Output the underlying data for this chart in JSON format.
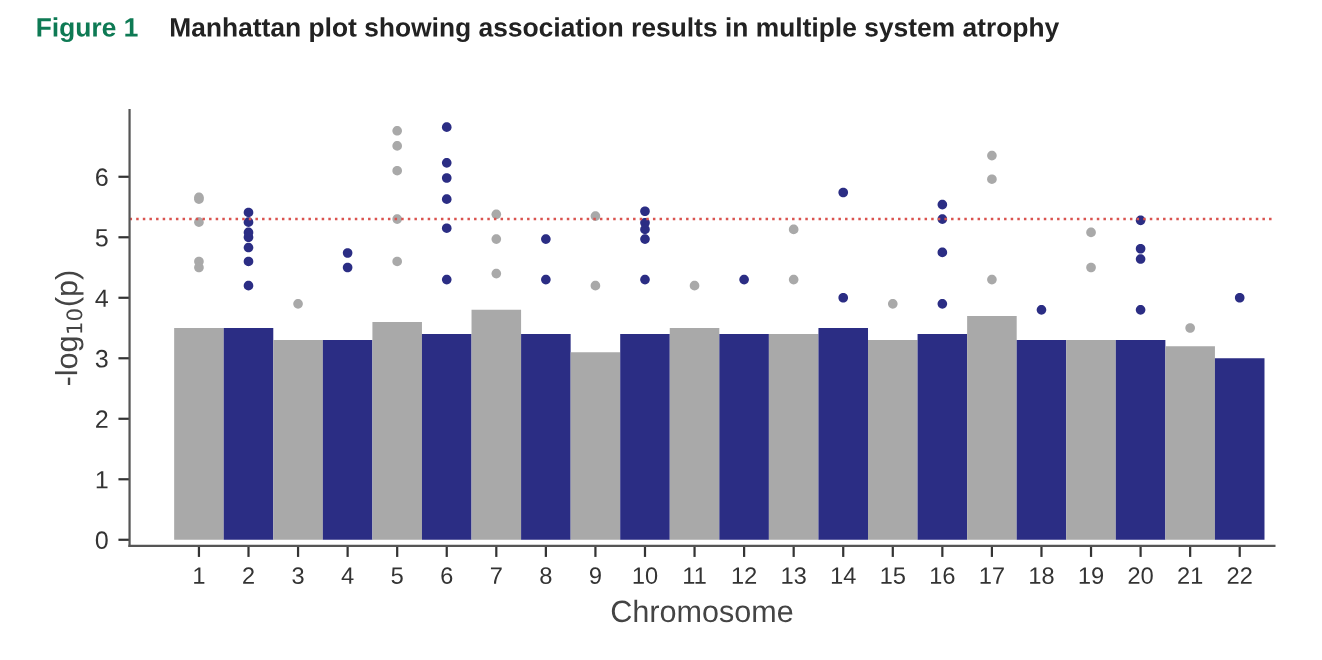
{
  "chart_data": {
    "type": "bar",
    "title": "Manhattan plot showing association results in multiple system atrophy",
    "annotations": [
      "Figure 1"
    ],
    "xlabel": "Chromosome",
    "ylabel": "-log$_{10}$(p)",
    "categories": [
      "1",
      "2",
      "3",
      "4",
      "5",
      "6",
      "7",
      "8",
      "9",
      "10",
      "11",
      "12",
      "13",
      "14",
      "15",
      "16",
      "17",
      "18",
      "19",
      "20",
      "21",
      "22"
    ],
    "ylim": [
      -0.1,
      7.1
    ],
    "yticks": [
      0,
      1,
      2,
      3,
      4,
      5,
      6
    ],
    "grid": false,
    "ref_lines": [
      {
        "axis": "y",
        "value": 5.3,
        "color": "#d9534f",
        "line_style": "dotted"
      }
    ],
    "series": [
      {
        "values": [
          3.5,
          3.5,
          3.3,
          3.3,
          3.6,
          3.4,
          3.8,
          3.4,
          3.1,
          3.4,
          3.5,
          3.4,
          3.4,
          3.5,
          3.3,
          3.4,
          3.7,
          3.3,
          3.3,
          3.3,
          3.2,
          3.0
        ],
        "colors": [
          "#a9a9a9",
          "#2b2d84",
          "#a9a9a9",
          "#2b2d84",
          "#a9a9a9",
          "#2b2d84",
          "#a9a9a9",
          "#2b2d84",
          "#a9a9a9",
          "#2b2d84",
          "#a9a9a9",
          "#2b2d84",
          "#a9a9a9",
          "#2b2d84",
          "#a9a9a9",
          "#2b2d84",
          "#a9a9a9",
          "#2b2d84",
          "#a9a9a9",
          "#2b2d84",
          "#a9a9a9",
          "#2b2d84"
        ]
      },
      {
        "type": "scatter",
        "marker": "circle",
        "x": [
          "1",
          "1",
          "1",
          "1",
          "1",
          "2",
          "2",
          "2",
          "2",
          "2",
          "2",
          "2",
          "3",
          "4",
          "4",
          "5",
          "5",
          "5",
          "5",
          "5",
          "6",
          "6",
          "6",
          "6",
          "6",
          "6",
          "7",
          "7",
          "7",
          "8",
          "8",
          "9",
          "9",
          "10",
          "10",
          "10",
          "10",
          "10",
          "11",
          "12",
          "13",
          "13",
          "14",
          "14",
          "15",
          "16",
          "16",
          "16",
          "16",
          "17",
          "17",
          "17",
          "18",
          "19",
          "19",
          "20",
          "20",
          "20",
          "20",
          "21",
          "22"
        ],
        "values": [
          5.63,
          5.66,
          5.25,
          4.6,
          4.5,
          4.83,
          5.25,
          5.0,
          4.6,
          5.41,
          5.08,
          4.2,
          3.9,
          4.74,
          4.5,
          6.76,
          6.51,
          6.1,
          5.3,
          4.6,
          6.82,
          6.23,
          5.98,
          5.63,
          5.15,
          4.3,
          5.38,
          4.97,
          4.4,
          4.97,
          4.3,
          5.35,
          4.2,
          5.24,
          4.97,
          5.43,
          5.13,
          4.3,
          4.2,
          4.3,
          5.13,
          4.3,
          5.74,
          4.0,
          3.9,
          5.54,
          5.3,
          4.75,
          3.9,
          6.35,
          5.96,
          4.3,
          3.8,
          5.08,
          4.5,
          5.28,
          4.81,
          4.64,
          3.8,
          3.5,
          4.0
        ],
        "colors": [
          "#a9a9a9",
          "#a9a9a9",
          "#a9a9a9",
          "#a9a9a9",
          "#a9a9a9",
          "#2b2d84",
          "#2b2d84",
          "#2b2d84",
          "#2b2d84",
          "#2b2d84",
          "#2b2d84",
          "#2b2d84",
          "#a9a9a9",
          "#2b2d84",
          "#2b2d84",
          "#a9a9a9",
          "#a9a9a9",
          "#a9a9a9",
          "#a9a9a9",
          "#a9a9a9",
          "#2b2d84",
          "#2b2d84",
          "#2b2d84",
          "#2b2d84",
          "#2b2d84",
          "#2b2d84",
          "#a9a9a9",
          "#a9a9a9",
          "#a9a9a9",
          "#2b2d84",
          "#2b2d84",
          "#a9a9a9",
          "#a9a9a9",
          "#2b2d84",
          "#2b2d84",
          "#2b2d84",
          "#2b2d84",
          "#2b2d84",
          "#a9a9a9",
          "#2b2d84",
          "#a9a9a9",
          "#a9a9a9",
          "#2b2d84",
          "#2b2d84",
          "#a9a9a9",
          "#2b2d84",
          "#2b2d84",
          "#2b2d84",
          "#2b2d84",
          "#a9a9a9",
          "#a9a9a9",
          "#a9a9a9",
          "#2b2d84",
          "#a9a9a9",
          "#a9a9a9",
          "#2b2d84",
          "#2b2d84",
          "#2b2d84",
          "#2b2d84",
          "#a9a9a9",
          "#2b2d84"
        ]
      }
    ]
  }
}
